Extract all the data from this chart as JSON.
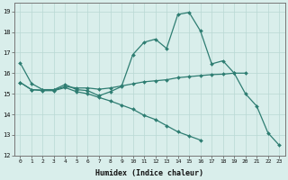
{
  "title": "",
  "xlabel": "Humidex (Indice chaleur)",
  "bg_color": "#d9eeeb",
  "grid_color": "#b8d8d4",
  "line_color": "#2e7d72",
  "xlim": [
    -0.5,
    23.5
  ],
  "ylim": [
    12,
    19.4
  ],
  "yticks": [
    12,
    13,
    14,
    15,
    16,
    17,
    18,
    19
  ],
  "xticks": [
    0,
    1,
    2,
    3,
    4,
    5,
    6,
    7,
    8,
    9,
    10,
    11,
    12,
    13,
    14,
    15,
    16,
    17,
    18,
    19,
    20,
    21,
    22,
    23
  ],
  "x": [
    0,
    1,
    2,
    3,
    4,
    5,
    6,
    7,
    8,
    9,
    10,
    11,
    12,
    13,
    14,
    15,
    16,
    17,
    18,
    19,
    20,
    21,
    22,
    23
  ],
  "line1": [
    16.5,
    15.5,
    15.2,
    15.2,
    15.45,
    15.2,
    15.15,
    14.9,
    15.1,
    15.35,
    16.9,
    17.5,
    17.65,
    17.2,
    18.85,
    18.95,
    18.05,
    16.45,
    16.6,
    16.0,
    15.0,
    14.4,
    13.1,
    12.5
  ],
  "line2_x": [
    0,
    1,
    2,
    3,
    4,
    5,
    6,
    7,
    8,
    9,
    10,
    11,
    12,
    13,
    14,
    15,
    16,
    17,
    18,
    19,
    20
  ],
  "line2_y": [
    15.55,
    15.2,
    15.18,
    15.18,
    15.35,
    15.28,
    15.28,
    15.22,
    15.28,
    15.38,
    15.48,
    15.58,
    15.63,
    15.68,
    15.78,
    15.83,
    15.88,
    15.93,
    15.95,
    16.0,
    16.0
  ],
  "line3_x": [
    0,
    1,
    2,
    3,
    4,
    5,
    6,
    7,
    8,
    9,
    10,
    11,
    12,
    13,
    14,
    15,
    16
  ],
  "line3_y": [
    15.55,
    15.2,
    15.15,
    15.15,
    15.3,
    15.1,
    15.0,
    14.82,
    14.65,
    14.45,
    14.25,
    13.95,
    13.75,
    13.45,
    13.15,
    12.95,
    12.75
  ]
}
